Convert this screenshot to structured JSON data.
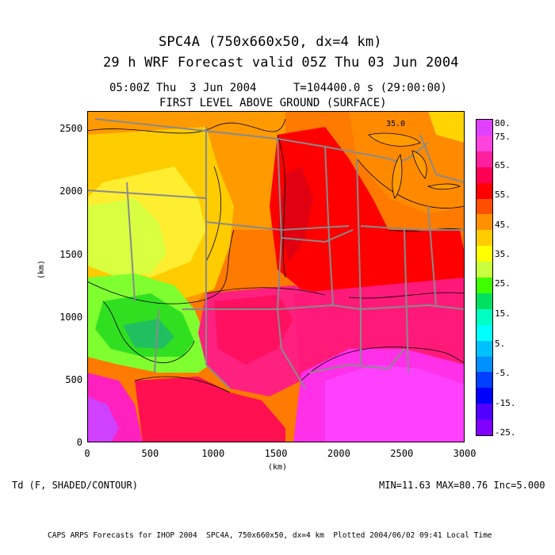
{
  "header": {
    "title_line1": "SPC4A (750x660x50, dx=4 km)",
    "title_line2": "29 h WRF Forecast valid 05Z Thu 03 Jun 2004",
    "time_left": "05:00Z Thu  3 Jun 2004",
    "time_right": "T=104400.0 s (29:00:00)",
    "level": "FIRST LEVEL ABOVE GROUND (SURFACE)"
  },
  "map": {
    "x_ticks": [
      "0",
      "500",
      "1000",
      "1500",
      "2000",
      "2500",
      "3000"
    ],
    "y_ticks": [
      "0",
      "500",
      "1000",
      "1500",
      "2000",
      "2500"
    ],
    "xlabel": "(km)",
    "ylabel": "(km)",
    "contour_label": "35.0",
    "xlim": [
      0,
      3000
    ],
    "ylim": [
      0,
      2640
    ]
  },
  "colorbar": {
    "labels": [
      "80.",
      "75.",
      "65.",
      "55.",
      "45.",
      "35.",
      "25.",
      "15.",
      "5.",
      "-5.",
      "-15.",
      "-25."
    ],
    "colors": [
      "#e040ff",
      "#ff44dd",
      "#ff20a0",
      "#ff0055",
      "#ff0000",
      "#ff5000",
      "#ff9000",
      "#ffcc00",
      "#ffff00",
      "#c8ff40",
      "#40ff00",
      "#00e060",
      "#00ffc0",
      "#00ffff",
      "#00c0ff",
      "#0090ff",
      "#0040ff",
      "#0000ff",
      "#5000ff",
      "#8000ff"
    ]
  },
  "footer": {
    "field": "Td (F, SHADED/CONTOUR)",
    "stats": "MIN=11.63 MAX=80.76 Inc=5.000",
    "credit": "CAPS ARPS Forecasts for IHOP 2004  SPC4A, 750x660x50, dx=4 km  Plotted 2004/06/02 09:41 Local Time"
  }
}
